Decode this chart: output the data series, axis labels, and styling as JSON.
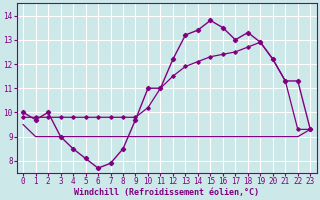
{
  "xlabel": "Windchill (Refroidissement éolien,°C)",
  "background_color": "#cce8e8",
  "grid_color": "#ffffff",
  "line_color": "#800080",
  "x_hours": [
    0,
    1,
    2,
    3,
    4,
    5,
    6,
    7,
    8,
    9,
    10,
    11,
    12,
    13,
    14,
    15,
    16,
    17,
    18,
    19,
    20,
    21,
    22,
    23
  ],
  "temp_line": [
    10.0,
    9.7,
    10.0,
    9.0,
    8.5,
    8.1,
    7.7,
    7.9,
    8.5,
    9.7,
    11.0,
    11.0,
    12.2,
    13.2,
    13.4,
    13.8,
    13.5,
    13.0,
    13.3,
    12.9,
    12.2,
    11.3,
    11.3,
    9.3
  ],
  "line2": [
    9.8,
    9.8,
    9.8,
    9.8,
    9.8,
    9.8,
    9.8,
    9.8,
    9.8,
    9.8,
    10.2,
    11.0,
    11.5,
    11.9,
    12.1,
    12.3,
    12.4,
    12.5,
    12.7,
    12.9,
    12.2,
    11.3,
    9.3,
    9.3
  ],
  "line3": [
    9.5,
    9.0,
    9.0,
    9.0,
    9.0,
    9.0,
    9.0,
    9.0,
    9.0,
    9.0,
    9.0,
    9.0,
    9.0,
    9.0,
    9.0,
    9.0,
    9.0,
    9.0,
    9.0,
    9.0,
    9.0,
    9.0,
    9.0,
    9.3
  ],
  "ylim": [
    7.5,
    14.5
  ],
  "xlim": [
    -0.5,
    23.5
  ],
  "yticks": [
    8,
    9,
    10,
    11,
    12,
    13,
    14
  ],
  "xticks": [
    0,
    1,
    2,
    3,
    4,
    5,
    6,
    7,
    8,
    9,
    10,
    11,
    12,
    13,
    14,
    15,
    16,
    17,
    18,
    19,
    20,
    21,
    22,
    23
  ]
}
